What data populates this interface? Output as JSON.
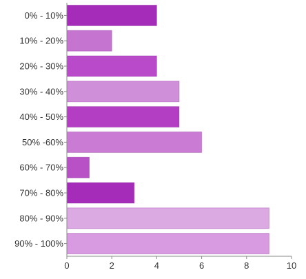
{
  "chart_data": {
    "type": "bar",
    "orientation": "horizontal",
    "categories": [
      "0% - 10%",
      "10% - 20%",
      "20% - 30%",
      "30% - 40%",
      "40% - 50%",
      "50% -60%",
      "60% - 70%",
      "70% - 80%",
      "80% - 90%",
      "90% - 100%"
    ],
    "values": [
      4,
      2,
      4,
      5,
      5,
      6,
      1,
      3,
      9,
      9
    ],
    "xlim": [
      0,
      10
    ],
    "x_ticks": [
      0,
      2,
      4,
      6,
      8,
      10
    ],
    "grid": false,
    "title": "",
    "xlabel": "",
    "ylabel": "",
    "bar_colors": [
      "#a42cb8",
      "#c574cf",
      "#b94ac9",
      "#d08fd9",
      "#b43ec3",
      "#ca7cd4",
      "#b851c6",
      "#a42cb8",
      "#dcaae2",
      "#d89ae0"
    ],
    "axis_color": "#888888"
  }
}
